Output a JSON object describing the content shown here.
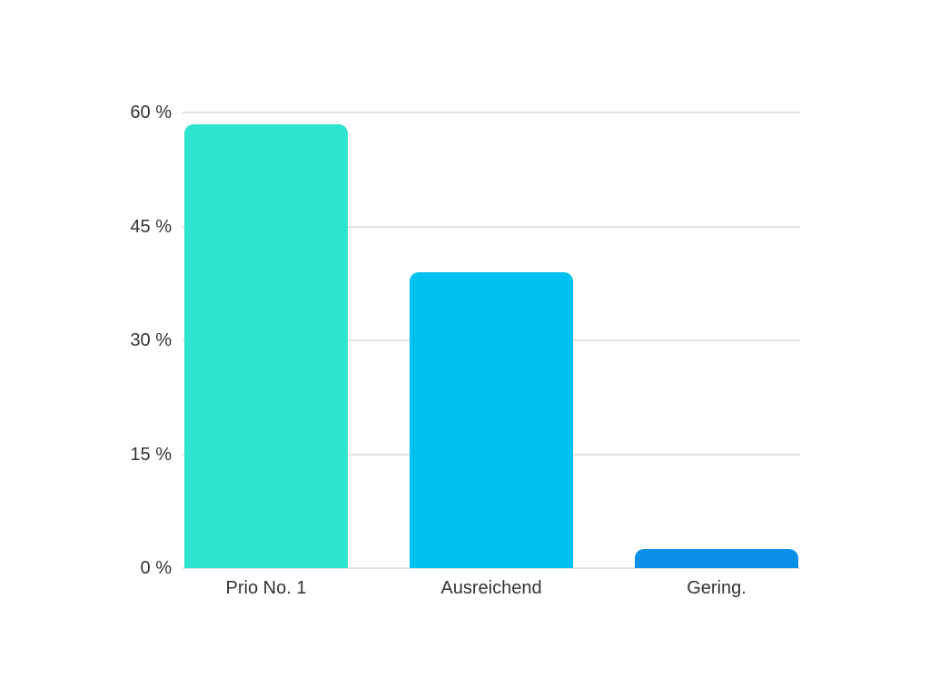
{
  "page": {
    "background_color": "#ffffff",
    "text_color": "#333333"
  },
  "chart_data": {
    "type": "bar",
    "title": "",
    "xlabel": "",
    "ylabel": "",
    "categories": [
      "Prio No. 1",
      "Ausreichend",
      "Gering."
    ],
    "values": [
      58.5,
      39,
      2.5
    ],
    "ylim": [
      0,
      60
    ],
    "yticks": [
      0,
      15,
      30,
      45,
      60
    ],
    "ytick_labels": [
      "0 %",
      "15 %",
      "30 %",
      "45 %",
      "60 %"
    ],
    "grid": true,
    "legend": false,
    "bar_colors": [
      "#2DE4CF",
      "#00C1EF",
      "#0A90E8"
    ],
    "gridline_color": "#E2E2E2",
    "label_color": "#333333"
  }
}
